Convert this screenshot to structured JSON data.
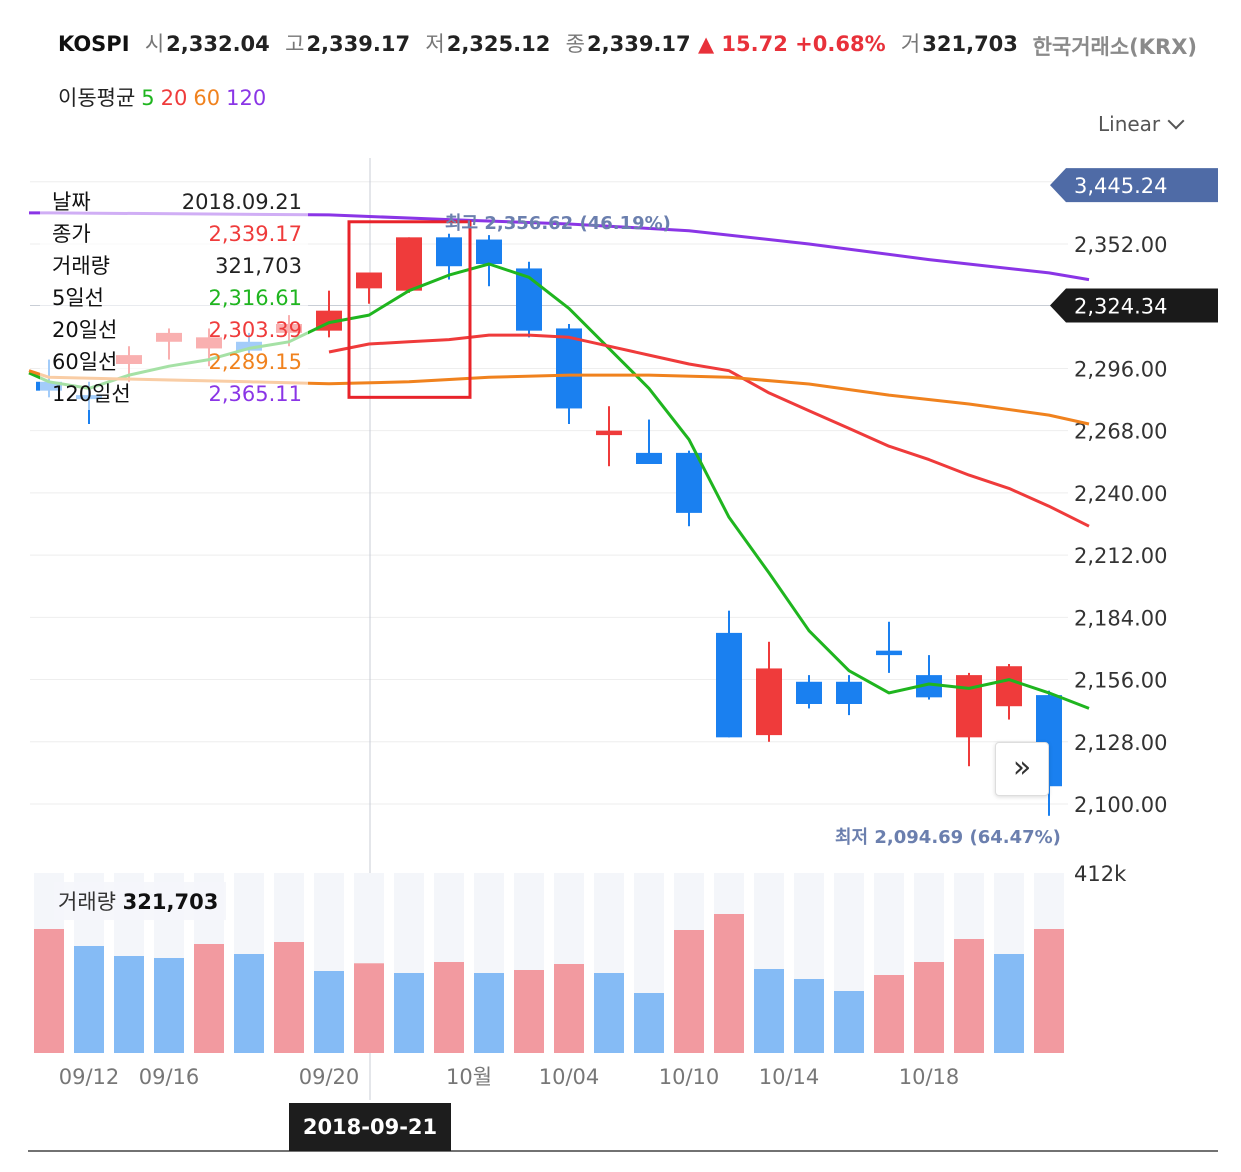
{
  "header": {
    "symbol": "KOSPI",
    "open_label": "시",
    "open": "2,332.04",
    "high_label": "고",
    "high": "2,339.17",
    "low_label": "저",
    "low": "2,325.12",
    "close_label": "종",
    "close": "2,339.17",
    "change": "▲ 15.72",
    "change_pct": "+0.68%",
    "volume_label": "거",
    "volume": "321,703",
    "exchange": "한국거래소(KRX)"
  },
  "ma_legend": {
    "label": "이동평균",
    "items": [
      {
        "period": "5",
        "color": "#1fb51f"
      },
      {
        "period": "20",
        "color": "#ef3b3b"
      },
      {
        "period": "60",
        "color": "#f0821e"
      },
      {
        "period": "120",
        "color": "#8a35e6"
      }
    ]
  },
  "scale_selector": "Linear",
  "info_panel": [
    {
      "key": "날짜",
      "value": "2018.09.21",
      "color": "#222222"
    },
    {
      "key": "종가",
      "value": "2,339.17",
      "color": "#ef3b3b"
    },
    {
      "key": "거래량",
      "value": "321,703",
      "color": "#222222"
    },
    {
      "key": "5일선",
      "value": "2,316.61",
      "color": "#1fb51f"
    },
    {
      "key": "20일선",
      "value": "2,303.39",
      "color": "#ef3b3b"
    },
    {
      "key": "60일선",
      "value": "2,289.15",
      "color": "#f0821e"
    },
    {
      "key": "120일선",
      "value": "2,365.11",
      "color": "#8a35e6"
    }
  ],
  "volume_header": {
    "label": "거래량",
    "value": "321,703"
  },
  "volume_axis_label": "412k",
  "selected_date": "2018-09-21",
  "expand_icon": "double-chevron-right-icon",
  "colors": {
    "up": "#ef3b3b",
    "down": "#1a80f0",
    "up_vol": "#f29aa0",
    "down_vol": "#85bbf5"
  },
  "chart_data": {
    "type": "candlestick",
    "y_tick_labels": [
      "2,100.00",
      "2,128.00",
      "2,156.00",
      "2,184.00",
      "2,212.00",
      "2,240.00",
      "2,268.00",
      "2,296.00",
      "2,352.00"
    ],
    "y_ticks": [
      2100,
      2128,
      2156,
      2184,
      2212,
      2240,
      2268,
      2296,
      2352
    ],
    "ylim": [
      2090,
      2400
    ],
    "x_tick_labels": [
      {
        "label": "09/12",
        "index": 1
      },
      {
        "label": "09/16",
        "index": 3
      },
      {
        "label": "09/20",
        "index": 7
      },
      {
        "label": "10월",
        "index": 10.5
      },
      {
        "label": "10/04",
        "index": 13
      },
      {
        "label": "10/10",
        "index": 16
      },
      {
        "label": "10/14",
        "index": 18.5
      },
      {
        "label": "10/18",
        "index": 22
      }
    ],
    "price_tags": [
      {
        "label": "3,445.24",
        "value": 2378.5,
        "style": "blue"
      },
      {
        "label": "2,324.34",
        "value": 2324.34,
        "style": "dark"
      }
    ],
    "annotations": [
      {
        "text": "최고 2,356.62 (46.19%)",
        "value": 2356.62,
        "index": 10
      },
      {
        "text": "최저 2,094.69 (64.47%)",
        "value": 2094.69,
        "index": 26
      }
    ],
    "highlight_box": {
      "from_index": 8,
      "to_index": 10,
      "low": 2283,
      "high": 2362
    },
    "crosshair_index": 8.5,
    "candles": [
      {
        "o": 2290,
        "h": 2300,
        "l": 2283,
        "c": 2286
      },
      {
        "o": 2284,
        "h": 2290,
        "l": 2271,
        "c": 2283
      },
      {
        "o": 2298,
        "h": 2306,
        "l": 2290,
        "c": 2302
      },
      {
        "o": 2308,
        "h": 2314,
        "l": 2300,
        "c": 2312
      },
      {
        "o": 2305,
        "h": 2314,
        "l": 2297,
        "c": 2310
      },
      {
        "o": 2308,
        "h": 2312,
        "l": 2302,
        "c": 2304
      },
      {
        "o": 2312,
        "h": 2320,
        "l": 2306,
        "c": 2316
      },
      {
        "o": 2313,
        "h": 2331,
        "l": 2310,
        "c": 2322
      },
      {
        "o": 2332.04,
        "h": 2339.17,
        "l": 2325.12,
        "c": 2339.17
      },
      {
        "o": 2331,
        "h": 2355,
        "l": 2330,
        "c": 2355
      },
      {
        "o": 2355,
        "h": 2356.62,
        "l": 2336,
        "c": 2342
      },
      {
        "o": 2354,
        "h": 2356,
        "l": 2333,
        "c": 2343
      },
      {
        "o": 2341,
        "h": 2344,
        "l": 2310,
        "c": 2313
      },
      {
        "o": 2314,
        "h": 2316,
        "l": 2271,
        "c": 2278
      },
      {
        "o": 2266,
        "h": 2279,
        "l": 2252,
        "c": 2268
      },
      {
        "o": 2258,
        "h": 2273,
        "l": 2253,
        "c": 2253
      },
      {
        "o": 2258,
        "h": 2259,
        "l": 2225,
        "c": 2231
      },
      {
        "o": 2177,
        "h": 2187,
        "l": 2130,
        "c": 2130
      },
      {
        "o": 2131,
        "h": 2173,
        "l": 2128,
        "c": 2161
      },
      {
        "o": 2155,
        "h": 2158,
        "l": 2143,
        "c": 2145
      },
      {
        "o": 2155,
        "h": 2158,
        "l": 2140,
        "c": 2145
      },
      {
        "o": 2169,
        "h": 2182,
        "l": 2159,
        "c": 2167
      },
      {
        "o": 2158,
        "h": 2167,
        "l": 2147,
        "c": 2148
      },
      {
        "o": 2130,
        "h": 2159,
        "l": 2117,
        "c": 2158
      },
      {
        "o": 2144,
        "h": 2163,
        "l": 2138,
        "c": 2162
      },
      {
        "o": 2149,
        "h": 2151,
        "l": 2094.69,
        "c": 2108
      }
    ],
    "volume": [
      {
        "v": 356,
        "up": true
      },
      {
        "v": 339,
        "up": false
      },
      {
        "v": 329,
        "up": false
      },
      {
        "v": 327,
        "up": false
      },
      {
        "v": 341,
        "up": true
      },
      {
        "v": 331,
        "up": false
      },
      {
        "v": 343,
        "up": true
      },
      {
        "v": 314,
        "up": false
      },
      {
        "v": 321.703,
        "up": true
      },
      {
        "v": 312,
        "up": false
      },
      {
        "v": 323,
        "up": true
      },
      {
        "v": 312,
        "up": false
      },
      {
        "v": 315,
        "up": true
      },
      {
        "v": 321,
        "up": true
      },
      {
        "v": 312,
        "up": false
      },
      {
        "v": 292,
        "up": false
      },
      {
        "v": 355,
        "up": true
      },
      {
        "v": 371,
        "up": true
      },
      {
        "v": 316,
        "up": false
      },
      {
        "v": 306,
        "up": false
      },
      {
        "v": 294,
        "up": false
      },
      {
        "v": 310,
        "up": true
      },
      {
        "v": 323,
        "up": true
      },
      {
        "v": 346,
        "up": true
      },
      {
        "v": 331,
        "up": false
      },
      {
        "v": 356,
        "up": true
      }
    ],
    "volume_ylim": [
      232,
      412
    ],
    "ma_series": [
      {
        "period": "5",
        "color": "#1fb51f",
        "points": [
          [
            -0.5,
            2294
          ],
          [
            0,
            2290
          ],
          [
            1,
            2287
          ],
          [
            2,
            2293
          ],
          [
            3,
            2297
          ],
          [
            4,
            2300
          ],
          [
            5,
            2305
          ],
          [
            6,
            2308
          ],
          [
            7,
            2316.61
          ],
          [
            8,
            2320
          ],
          [
            9,
            2331
          ],
          [
            10,
            2338
          ],
          [
            11,
            2343
          ],
          [
            12,
            2337
          ],
          [
            13,
            2323
          ],
          [
            14,
            2305
          ],
          [
            15,
            2287
          ],
          [
            16,
            2264
          ],
          [
            17,
            2229
          ],
          [
            18,
            2204
          ],
          [
            19,
            2178
          ],
          [
            20,
            2160
          ],
          [
            21,
            2150
          ],
          [
            22,
            2154
          ],
          [
            23,
            2152
          ],
          [
            24,
            2156
          ],
          [
            25,
            2150
          ],
          [
            26,
            2143
          ]
        ]
      },
      {
        "period": "20",
        "color": "#ef3b3b",
        "points": [
          [
            7,
            2303.39
          ],
          [
            8,
            2307
          ],
          [
            9,
            2308
          ],
          [
            10,
            2309
          ],
          [
            11,
            2311
          ],
          [
            12,
            2311
          ],
          [
            13,
            2310
          ],
          [
            14,
            2306
          ],
          [
            15,
            2302
          ],
          [
            16,
            2298
          ],
          [
            17,
            2295
          ],
          [
            18,
            2285
          ],
          [
            19,
            2277
          ],
          [
            20,
            2269
          ],
          [
            21,
            2261
          ],
          [
            22,
            2255
          ],
          [
            23,
            2248
          ],
          [
            24,
            2242
          ],
          [
            25,
            2234
          ],
          [
            26,
            2225
          ]
        ]
      },
      {
        "period": "60",
        "color": "#f0821e",
        "points": [
          [
            -0.5,
            2295
          ],
          [
            0,
            2292
          ],
          [
            5,
            2290
          ],
          [
            7,
            2289.15
          ],
          [
            9,
            2290
          ],
          [
            11,
            2292
          ],
          [
            13,
            2293
          ],
          [
            15,
            2293
          ],
          [
            17,
            2292
          ],
          [
            19,
            2289
          ],
          [
            21,
            2284
          ],
          [
            23,
            2280
          ],
          [
            25,
            2275
          ],
          [
            26,
            2271
          ]
        ]
      },
      {
        "period": "120",
        "color": "#8a35e6",
        "points": [
          [
            -0.5,
            2366
          ],
          [
            0,
            2366
          ],
          [
            4,
            2365.5
          ],
          [
            7,
            2365.11
          ],
          [
            10,
            2363
          ],
          [
            13,
            2361
          ],
          [
            16,
            2358
          ],
          [
            19,
            2352
          ],
          [
            22,
            2345
          ],
          [
            25,
            2339
          ],
          [
            26,
            2336
          ]
        ]
      }
    ]
  }
}
